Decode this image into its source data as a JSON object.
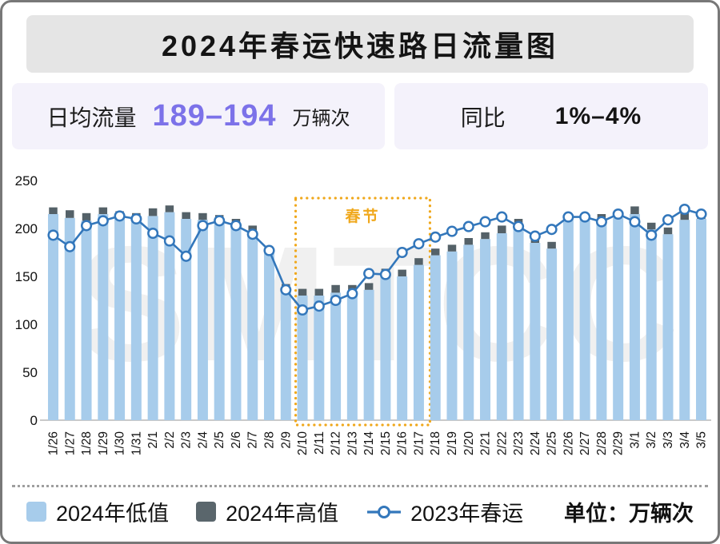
{
  "card": {
    "title": "2024年春运快速路日流量图"
  },
  "stats": {
    "daily_flow_label": "日均流量",
    "daily_flow_value": "189–194",
    "daily_flow_unit": "万辆次",
    "yoy_label": "同比",
    "yoy_value": "1%–4%"
  },
  "legend": {
    "unit_note": "单位：万辆次"
  },
  "watermark": "SMTCC",
  "colors": {
    "title_bg": "#e5e5e5",
    "stat_box_bg": "#f4f2fb",
    "purple_accent": "#7c72e9",
    "bar_low": "#a7cceb",
    "bar_high": "#546168",
    "line_2023": "#3377bb",
    "festival": "#f0a81c",
    "axis_line": "#c9c9c9",
    "watermark_gray": "#f0f0f0"
  },
  "chart_data": {
    "type": "combo",
    "title": "2024年春运快速路日流量图",
    "ylabel": "万辆次",
    "ylim": [
      0,
      250
    ],
    "yticks": [
      0,
      50,
      100,
      150,
      200,
      250
    ],
    "grid": false,
    "legend_position": "bottom",
    "categories": [
      "1/26",
      "1/27",
      "1/28",
      "1/29",
      "1/30",
      "1/31",
      "2/1",
      "2/2",
      "2/3",
      "2/4",
      "2/5",
      "2/6",
      "2/7",
      "2/8",
      "2/9",
      "2/10",
      "2/11",
      "2/12",
      "2/13",
      "2/14",
      "2/15",
      "2/16",
      "2/17",
      "2/18",
      "2/19",
      "2/20",
      "2/21",
      "2/22",
      "2/23",
      "2/24",
      "2/25",
      "2/26",
      "2/27",
      "2/28",
      "2/29",
      "3/1",
      "3/2",
      "3/3",
      "3/4",
      "3/5"
    ],
    "series": [
      {
        "name": "2024年低值",
        "type": "bar",
        "color": "#a7cceb",
        "values": [
          215,
          211,
          208,
          215,
          211,
          208,
          213,
          217,
          210,
          209,
          206,
          202,
          195,
          174,
          134,
          130,
          130,
          133,
          134,
          136,
          151,
          150,
          162,
          172,
          176,
          183,
          189,
          195,
          202,
          185,
          179,
          209,
          210,
          208,
          211,
          215,
          199,
          194,
          209,
          210
        ]
      },
      {
        "name": "2024年高值",
        "type": "bar-cap",
        "color": "#546168",
        "values": [
          222,
          219,
          216,
          222,
          218,
          216,
          221,
          224,
          217,
          216,
          214,
          210,
          203,
          181,
          142,
          137,
          137,
          141,
          141,
          143,
          158,
          157,
          169,
          179,
          183,
          190,
          196,
          203,
          210,
          192,
          186,
          215,
          215,
          215,
          217,
          223,
          206,
          201,
          217,
          217
        ]
      },
      {
        "name": "2023年春运",
        "type": "line",
        "color": "#3377bb",
        "values": [
          193,
          181,
          203,
          208,
          213,
          210,
          195,
          187,
          171,
          203,
          208,
          203,
          194,
          177,
          136,
          115,
          119,
          125,
          132,
          153,
          152,
          175,
          184,
          191,
          197,
          202,
          207,
          212,
          202,
          192,
          199,
          212,
          212,
          207,
          215,
          207,
          193,
          209,
          220,
          215
        ]
      }
    ],
    "annotation": {
      "label": "春节",
      "from": "2/10",
      "to": "2/17",
      "color": "#f0a81c"
    }
  }
}
